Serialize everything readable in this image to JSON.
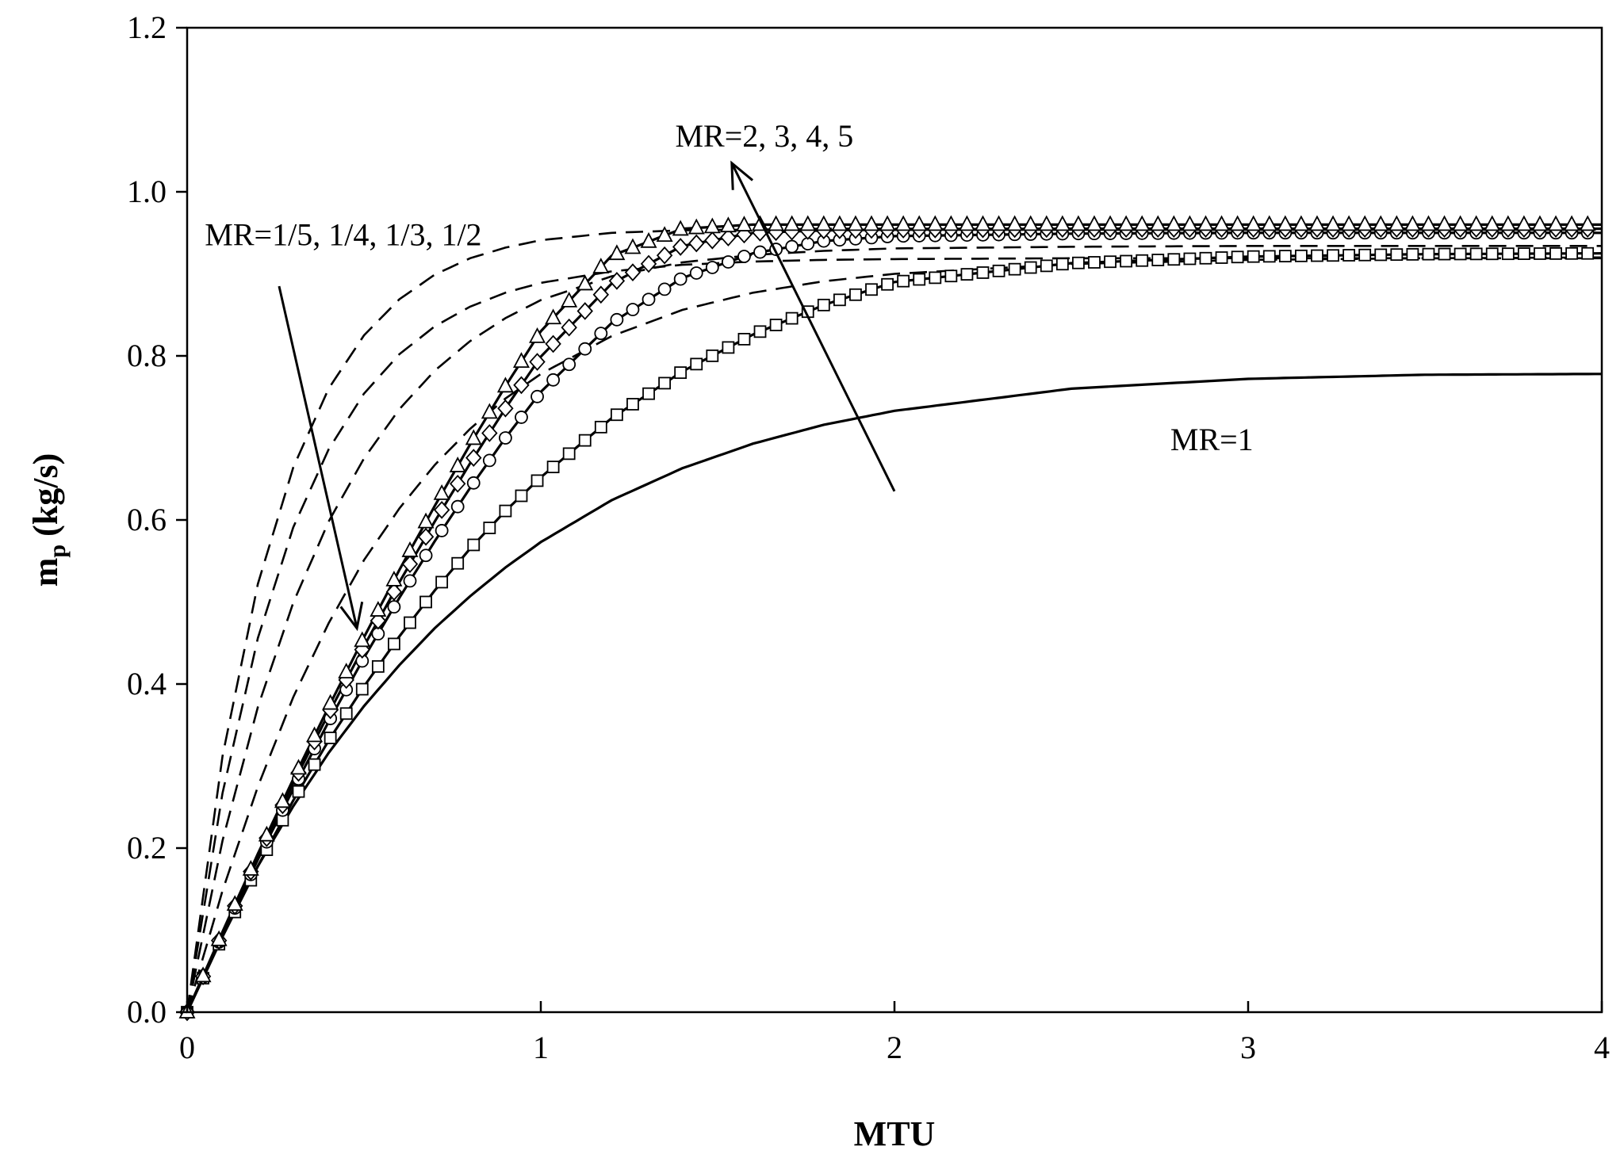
{
  "chart_data": {
    "type": "line",
    "title": "",
    "xlabel": "MTU",
    "ylabel_main": "m",
    "ylabel_sub": "p",
    "ylabel_unit": "(kg/s)",
    "xlim": [
      0,
      4
    ],
    "ylim": [
      0,
      1.2
    ],
    "x_ticks": [
      0,
      1,
      2,
      3,
      4
    ],
    "x_tick_labels": [
      "0",
      "1",
      "2",
      "3",
      "4"
    ],
    "y_ticks": [
      0,
      0.2,
      0.4,
      0.6,
      0.8,
      1.0,
      1.2
    ],
    "y_tick_labels": [
      "0.0",
      "0.2",
      "0.4",
      "0.6",
      "0.8",
      "1.0",
      "1.2"
    ],
    "grid": false,
    "legend": "none",
    "x": [
      0,
      0.1,
      0.2,
      0.3,
      0.4,
      0.5,
      0.6,
      0.7,
      0.8,
      0.9,
      1.0,
      1.2,
      1.4,
      1.6,
      1.8,
      2.0,
      2.5,
      3.0,
      3.5,
      4.0
    ],
    "series": [
      {
        "name": "MR=1",
        "style": "solid",
        "marker": "none",
        "values": [
          0,
          0.095,
          0.178,
          0.251,
          0.316,
          0.373,
          0.423,
          0.468,
          0.507,
          0.542,
          0.573,
          0.624,
          0.663,
          0.693,
          0.716,
          0.733,
          0.76,
          0.772,
          0.777,
          0.778
        ]
      },
      {
        "name": "MR=2",
        "style": "solid",
        "marker": "square",
        "values": [
          0,
          0.092,
          0.178,
          0.258,
          0.331,
          0.397,
          0.458,
          0.514,
          0.565,
          0.611,
          0.652,
          0.724,
          0.781,
          0.826,
          0.862,
          0.89,
          0.913,
          0.921,
          0.924,
          0.925
        ]
      },
      {
        "name": "MR=3",
        "style": "solid",
        "marker": "circle",
        "values": [
          0,
          0.095,
          0.186,
          0.272,
          0.354,
          0.432,
          0.505,
          0.574,
          0.639,
          0.7,
          0.756,
          0.84,
          0.895,
          0.925,
          0.94,
          0.946,
          0.949,
          0.95,
          0.95,
          0.95
        ]
      },
      {
        "name": "MR=4",
        "style": "solid",
        "marker": "diamond",
        "values": [
          0,
          0.097,
          0.19,
          0.279,
          0.364,
          0.446,
          0.524,
          0.598,
          0.669,
          0.736,
          0.799,
          0.888,
          0.934,
          0.95,
          0.953,
          0.954,
          0.955,
          0.955,
          0.955,
          0.955
        ]
      },
      {
        "name": "MR=5",
        "style": "solid",
        "marker": "triangle",
        "values": [
          0,
          0.098,
          0.193,
          0.284,
          0.372,
          0.457,
          0.539,
          0.617,
          0.692,
          0.763,
          0.83,
          0.922,
          0.955,
          0.96,
          0.96,
          0.96,
          0.96,
          0.96,
          0.96,
          0.96
        ]
      },
      {
        "name": "MR=1/2",
        "style": "dashed",
        "marker": "none",
        "values": [
          0,
          0.148,
          0.275,
          0.384,
          0.474,
          0.551,
          0.614,
          0.667,
          0.711,
          0.748,
          0.778,
          0.824,
          0.856,
          0.877,
          0.891,
          0.9,
          0.912,
          0.917,
          0.919,
          0.92
        ]
      },
      {
        "name": "MR=1/3",
        "style": "dashed",
        "marker": "none",
        "values": [
          0,
          0.209,
          0.372,
          0.499,
          0.598,
          0.675,
          0.735,
          0.782,
          0.818,
          0.846,
          0.868,
          0.897,
          0.914,
          0.923,
          0.928,
          0.931,
          0.933,
          0.934,
          0.934,
          0.934
        ]
      },
      {
        "name": "MR=1/4",
        "style": "dashed",
        "marker": "none",
        "values": [
          0,
          0.267,
          0.456,
          0.591,
          0.686,
          0.754,
          0.802,
          0.836,
          0.86,
          0.877,
          0.889,
          0.903,
          0.911,
          0.915,
          0.917,
          0.918,
          0.919,
          0.919,
          0.919,
          0.919
        ]
      },
      {
        "name": "MR=1/5",
        "style": "dashed",
        "marker": "none",
        "values": [
          0,
          0.312,
          0.522,
          0.664,
          0.76,
          0.825,
          0.869,
          0.899,
          0.919,
          0.932,
          0.941,
          0.95,
          0.953,
          0.954,
          0.955,
          0.955,
          0.955,
          0.955,
          0.955,
          0.955
        ]
      }
    ],
    "annotations": [
      {
        "text": "MR=2, 3, 4, 5",
        "x": 1.38,
        "y": 1.055
      },
      {
        "text": "MR=1/5, 1/4, 1/3, 1/2",
        "x": 0.05,
        "y": 0.935
      },
      {
        "text": "MR=1",
        "x": 2.78,
        "y": 0.685
      }
    ],
    "arrows": [
      {
        "from": [
          2.0,
          0.635
        ],
        "to": [
          1.54,
          1.035
        ],
        "label": "MR=2, 3, 4, 5"
      },
      {
        "from": [
          0.26,
          0.885
        ],
        "to": [
          0.48,
          0.468
        ],
        "label": "MR=1/5, 1/4, 1/3, 1/2"
      }
    ]
  }
}
